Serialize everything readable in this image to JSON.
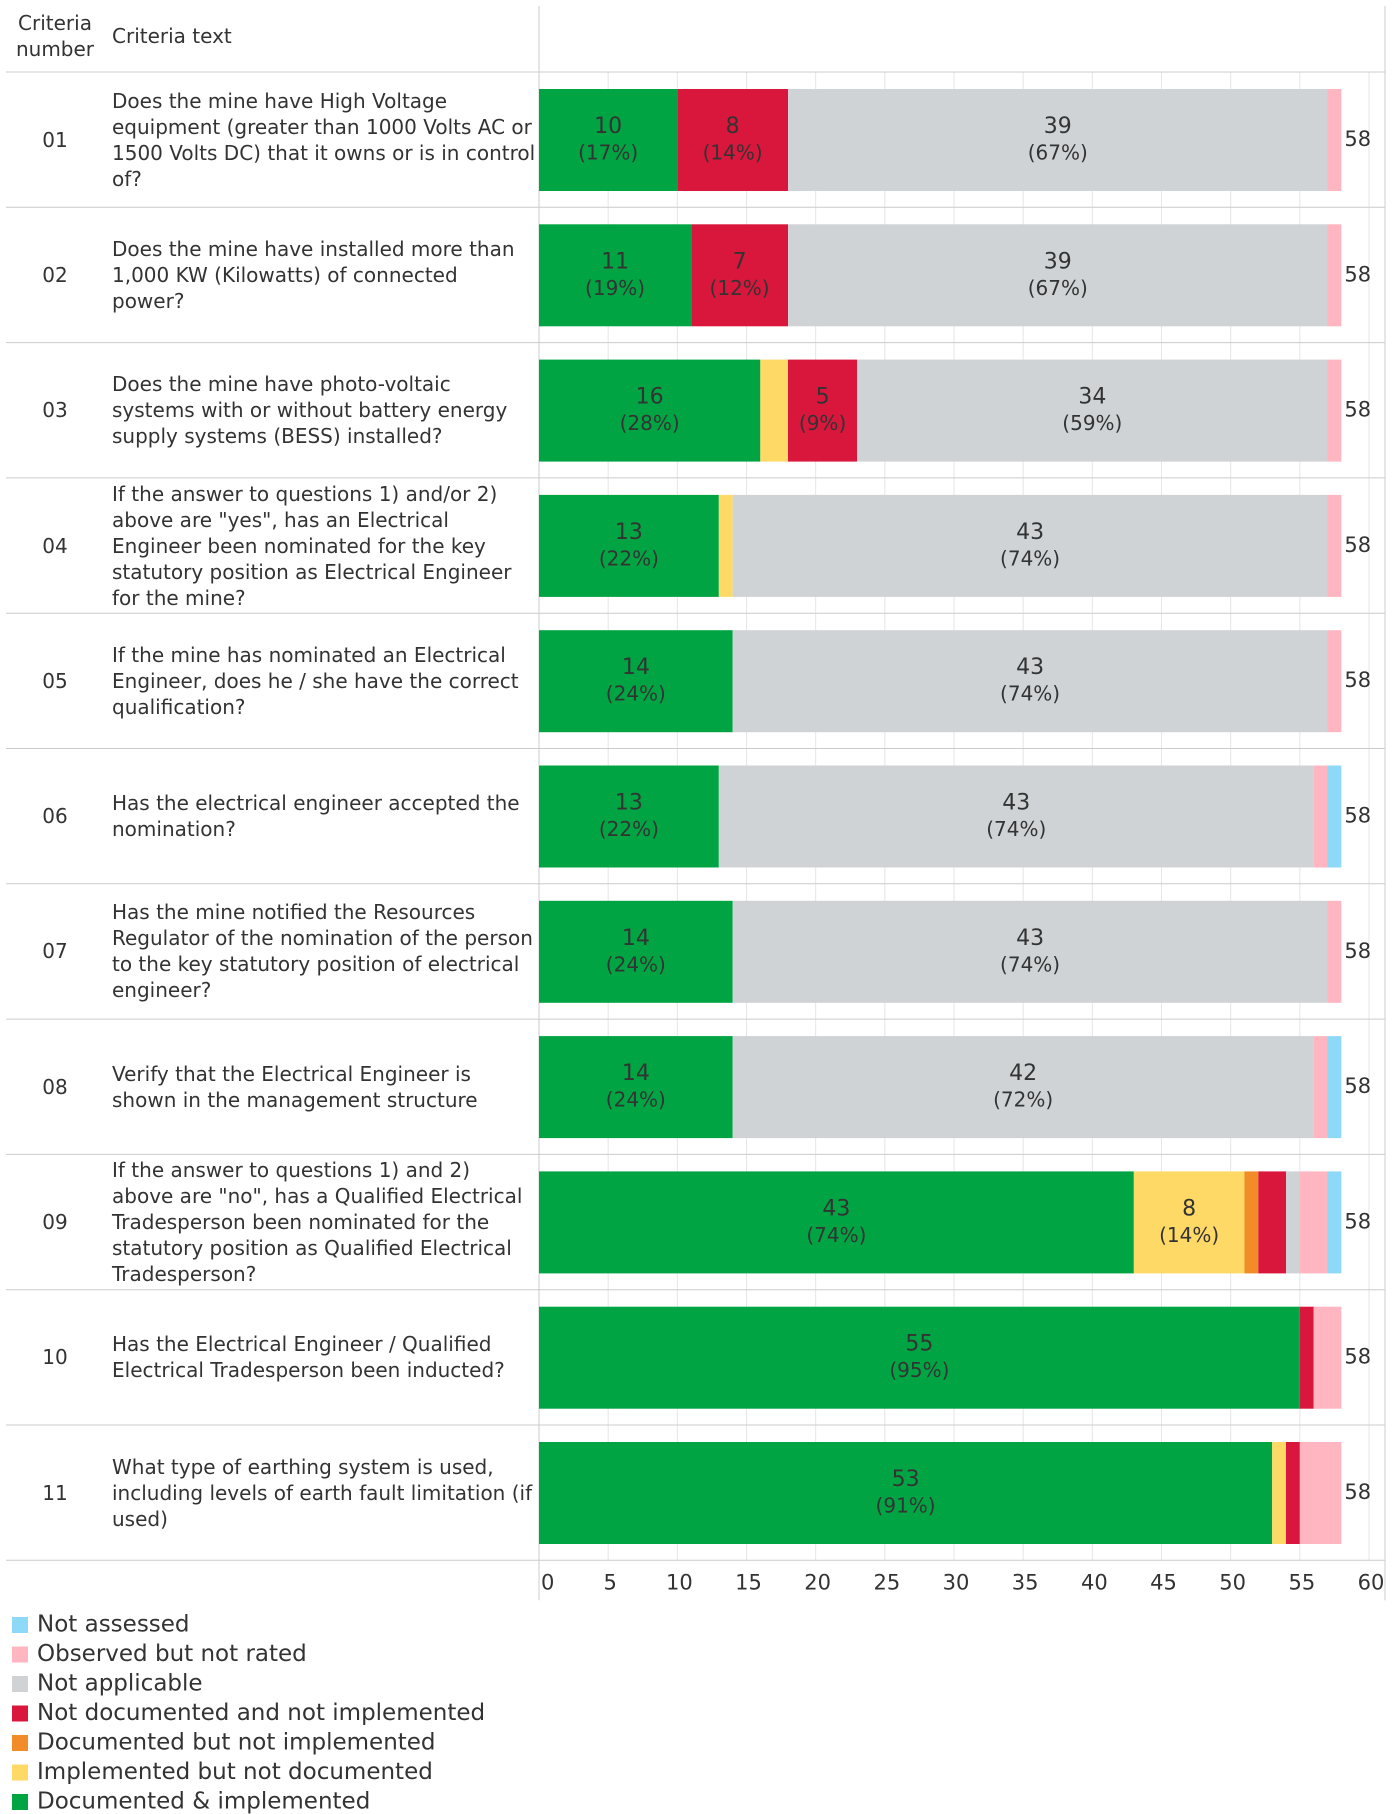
{
  "chart_data": {
    "type": "stacked_bar_horizontal",
    "columns": {
      "number": "Criteria number",
      "text": "Criteria text"
    },
    "rows": [
      {
        "number": "01",
        "text": "Does the mine have High Voltage equipment (greater than 1000 Volts AC or 1500 Volts DC) that it owns or is in control of?"
      },
      {
        "number": "02",
        "text": "Does the mine have installed more than 1,000 KW (Kilowatts) of connected power?"
      },
      {
        "number": "03",
        "text": "Does the mine have photo-voltaic systems with or without battery energy supply systems (BESS) installed?"
      },
      {
        "number": "04",
        "text": "If the answer to questions 1) and/or 2) above are \"yes\", has an Electrical Engineer been nominated for the key statutory position as Electrical Engineer for the mine?"
      },
      {
        "number": "05",
        "text": "If the mine has nominated an Electrical Engineer, does he / she have the correct qualification?"
      },
      {
        "number": "06",
        "text": "Has the electrical engineer accepted the nomination?"
      },
      {
        "number": "07",
        "text": "Has the mine notified the Resources Regulator of the nomination of the person to the key statutory position of electrical engineer?"
      },
      {
        "number": "08",
        "text": "Verify that the Electrical Engineer is shown in the management structure"
      },
      {
        "number": "09",
        "text": "If the answer to questions 1) and 2) above are \"no\", has a Qualified Electrical Tradesperson been nominated for the statutory position as Qualified Electrical Tradesperson?"
      },
      {
        "number": "10",
        "text": "Has the Electrical Engineer / Qualified Electrical Tradesperson been inducted?"
      },
      {
        "number": "11",
        "text": "What type of earthing system is used, including levels of earth fault limitation (if used)"
      }
    ],
    "series": [
      {
        "name": "Documented & implemented",
        "color": "#00a443",
        "values": [
          10,
          11,
          16,
          13,
          14,
          13,
          14,
          14,
          43,
          55,
          53
        ],
        "percent_labels": [
          "(17%)",
          "(19%)",
          "(28%)",
          "(22%)",
          "(24%)",
          "(22%)",
          "(24%)",
          "(24%)",
          "(74%)",
          "(95%)",
          "(91%)"
        ]
      },
      {
        "name": "Implemented but not documented",
        "color": "#ffd966",
        "values": [
          0,
          0,
          2,
          1,
          0,
          0,
          0,
          0,
          8,
          0,
          1
        ],
        "percent_labels": [
          null,
          null,
          null,
          null,
          null,
          null,
          null,
          null,
          "(14%)",
          null,
          null
        ]
      },
      {
        "name": "Documented but not implemented",
        "color": "#f28c28",
        "values": [
          0,
          0,
          0,
          0,
          0,
          0,
          0,
          0,
          1,
          0,
          0
        ],
        "percent_labels": [
          null,
          null,
          null,
          null,
          null,
          null,
          null,
          null,
          null,
          null,
          null
        ]
      },
      {
        "name": "Not documented and not implemented",
        "color": "#d9163c",
        "values": [
          8,
          7,
          5,
          0,
          0,
          0,
          0,
          0,
          2,
          1,
          1
        ],
        "percent_labels": [
          "(14%)",
          "(12%)",
          "(9%)",
          null,
          null,
          null,
          null,
          null,
          null,
          null,
          null
        ]
      },
      {
        "name": "Not applicable",
        "color": "#cfd3d6",
        "values": [
          39,
          39,
          34,
          43,
          43,
          43,
          43,
          42,
          1,
          0,
          0
        ],
        "percent_labels": [
          "(67%)",
          "(67%)",
          "(59%)",
          "(74%)",
          "(74%)",
          "(74%)",
          "(74%)",
          "(72%)",
          null,
          null,
          null
        ]
      },
      {
        "name": "Observed but not rated",
        "color": "#ffb6c1",
        "values": [
          1,
          1,
          1,
          1,
          1,
          1,
          1,
          1,
          2,
          2,
          3
        ],
        "percent_labels": [
          null,
          null,
          null,
          null,
          null,
          null,
          null,
          null,
          null,
          null,
          null
        ]
      },
      {
        "name": "Not assessed",
        "color": "#8ed8f8",
        "values": [
          0,
          0,
          0,
          0,
          0,
          1,
          0,
          1,
          1,
          0,
          0
        ],
        "percent_labels": [
          null,
          null,
          null,
          null,
          null,
          null,
          null,
          null,
          null,
          null,
          null
        ]
      }
    ],
    "totals": [
      58,
      58,
      58,
      58,
      58,
      58,
      58,
      58,
      58,
      58,
      58
    ],
    "xlim": [
      0,
      60
    ],
    "xticks": [
      0,
      5,
      10,
      15,
      20,
      25,
      30,
      35,
      40,
      45,
      50,
      55,
      60
    ],
    "grid": true
  }
}
